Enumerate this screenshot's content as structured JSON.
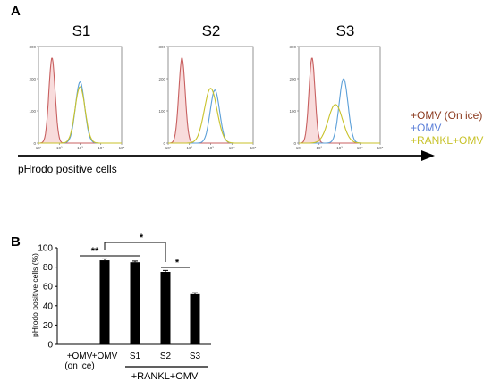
{
  "panel_a": {
    "letter": "A",
    "samples": [
      "S1",
      "S2",
      "S3"
    ],
    "legend": [
      {
        "label": "+OMV (On ice)",
        "color": "#8b3a1e"
      },
      {
        "label": "+OMV",
        "color": "#5b7fd8"
      },
      {
        "label": "+RANKL+OMV",
        "color": "#c8c22a"
      }
    ],
    "axis_label": "pHrodo positive cells",
    "y_ticks": [
      "300",
      "200",
      "100",
      "0"
    ],
    "x_ticks": [
      "10¹",
      "10²",
      "10³",
      "10⁴",
      "10⁵"
    ]
  },
  "panel_b": {
    "letter": "B"
  },
  "chart_data": [
    {
      "type": "area",
      "panel": "A",
      "title": "S1",
      "x_scale": "log",
      "xlim": [
        10,
        100000
      ],
      "ylim": [
        0,
        300
      ],
      "series": [
        {
          "name": "+OMV (On ice)",
          "color": "#c86060",
          "peak_log10": 1.65,
          "width": 0.15,
          "height": 265
        },
        {
          "name": "+OMV",
          "color": "#5b9fd8",
          "peak_log10": 3.0,
          "width": 0.22,
          "height": 190
        },
        {
          "name": "+RANKL+OMV",
          "color": "#c8c22a",
          "peak_log10": 3.0,
          "width": 0.24,
          "height": 175
        }
      ]
    },
    {
      "type": "area",
      "panel": "A",
      "title": "S2",
      "x_scale": "log",
      "xlim": [
        10,
        100000
      ],
      "ylim": [
        0,
        300
      ],
      "series": [
        {
          "name": "+OMV (On ice)",
          "color": "#c86060",
          "peak_log10": 1.65,
          "width": 0.15,
          "height": 265
        },
        {
          "name": "+OMV",
          "color": "#5b9fd8",
          "peak_log10": 3.2,
          "width": 0.22,
          "height": 165
        },
        {
          "name": "+RANKL+OMV",
          "color": "#c8c22a",
          "peak_log10": 3.0,
          "width": 0.3,
          "height": 170
        }
      ]
    },
    {
      "type": "area",
      "panel": "A",
      "title": "S3",
      "x_scale": "log",
      "xlim": [
        10,
        100000
      ],
      "ylim": [
        0,
        300
      ],
      "series": [
        {
          "name": "+OMV (On ice)",
          "color": "#c86060",
          "peak_log10": 1.65,
          "width": 0.15,
          "height": 265
        },
        {
          "name": "+OMV",
          "color": "#5b9fd8",
          "peak_log10": 3.2,
          "width": 0.22,
          "height": 200
        },
        {
          "name": "+RANKL+OMV",
          "color": "#c8c22a",
          "peak_log10": 2.8,
          "width": 0.35,
          "height": 120
        }
      ]
    },
    {
      "type": "bar",
      "panel": "B",
      "categories": [
        "+OMV\n(on ice)",
        "+OMV",
        "S1",
        "S2",
        "S3"
      ],
      "values": [
        0,
        87,
        85,
        75,
        52
      ],
      "errors": [
        0,
        1.5,
        1.2,
        1.5,
        1.5
      ],
      "ylabel": "pHrodo positive cells (%)",
      "ylim": [
        0,
        100
      ],
      "yticks": [
        0,
        20,
        40,
        60,
        80,
        100
      ],
      "group_label": "+RANKL+OMV",
      "group_members": [
        "S1",
        "S2",
        "S3"
      ],
      "significance": [
        {
          "from": "+OMV (on ice)",
          "to": "S1",
          "label": "**"
        },
        {
          "from": "+OMV",
          "to": "S2",
          "label": "*"
        },
        {
          "from": "S2",
          "to": "S3",
          "label": "*"
        }
      ],
      "bar_color": "#000000"
    }
  ]
}
